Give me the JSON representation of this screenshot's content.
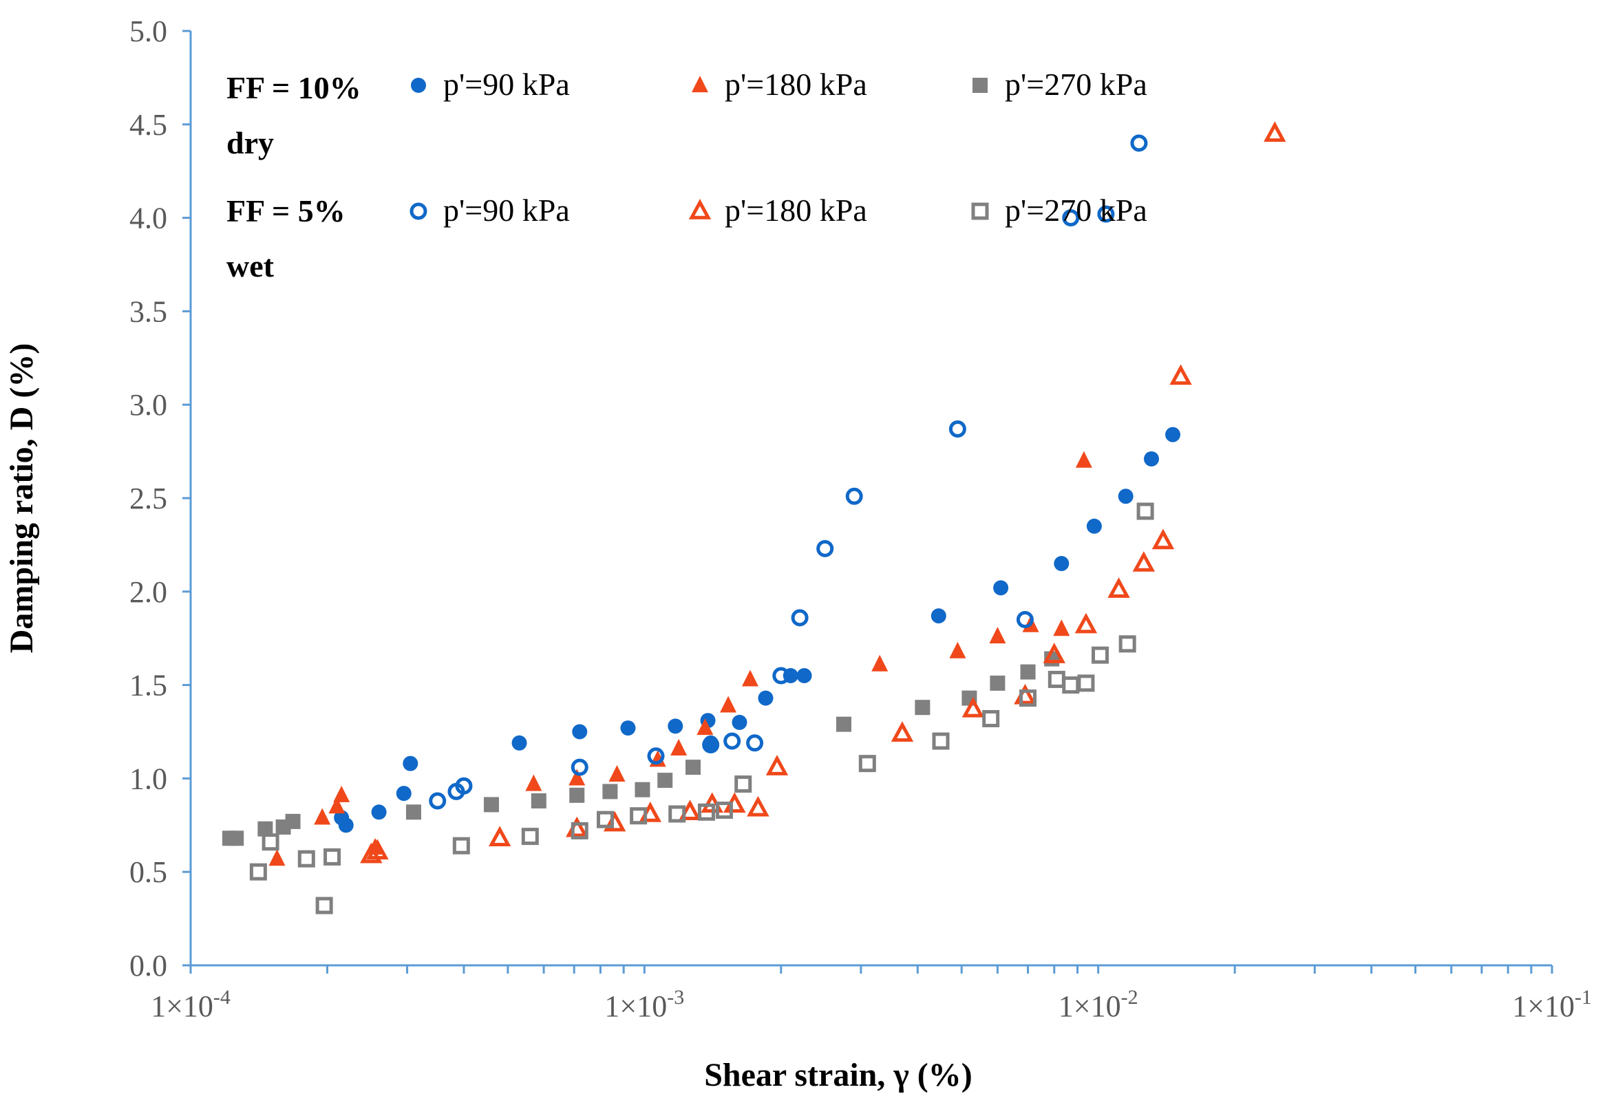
{
  "chart_data": {
    "type": "scatter",
    "x_scale": "log",
    "xlim": [
      0.0001,
      0.1
    ],
    "ylim": [
      0.0,
      5.0
    ],
    "xlabel": "Shear strain, γ (%)",
    "ylabel": "Damping ratio, D (%)",
    "x_tick_labels": [
      {
        "value": 0.0001,
        "label": "1×10",
        "exp": "-4"
      },
      {
        "value": 0.001,
        "label": "1×10",
        "exp": "-3"
      },
      {
        "value": 0.01,
        "label": "1×10",
        "exp": "-2"
      },
      {
        "value": 0.1,
        "label": "1×10",
        "exp": "-1"
      }
    ],
    "y_tick_labels": [
      {
        "value": 0.0,
        "label": "0.0"
      },
      {
        "value": 0.5,
        "label": "0.5"
      },
      {
        "value": 1.0,
        "label": "1.0"
      },
      {
        "value": 1.5,
        "label": "1.5"
      },
      {
        "value": 2.0,
        "label": "2.0"
      },
      {
        "value": 2.5,
        "label": "2.5"
      },
      {
        "value": 3.0,
        "label": "3.0"
      },
      {
        "value": 3.5,
        "label": "3.5"
      },
      {
        "value": 4.0,
        "label": "4.0"
      },
      {
        "value": 4.5,
        "label": "4.5"
      },
      {
        "value": 5.0,
        "label": "5.0"
      }
    ],
    "legend_groups": [
      {
        "line1": "FF = 10%",
        "line2": "dry"
      },
      {
        "line1": "FF = 5%",
        "line2": "wet"
      }
    ],
    "series": [
      {
        "name": "p'=90 kPa",
        "group": "FF = 10% dry",
        "marker": "circle",
        "filled": true,
        "color": "#1068c8",
        "points": [
          [
            0.000215,
            0.79
          ],
          [
            0.00022,
            0.75
          ],
          [
            0.00026,
            0.82
          ],
          [
            0.000295,
            0.92
          ],
          [
            0.000305,
            1.08
          ],
          [
            0.00053,
            1.19
          ],
          [
            0.00072,
            1.25
          ],
          [
            0.00092,
            1.27
          ],
          [
            0.00117,
            1.28
          ],
          [
            0.00138,
            1.31
          ],
          [
            0.0014,
            1.19
          ],
          [
            0.00162,
            1.3
          ],
          [
            0.00185,
            1.43
          ],
          [
            0.0021,
            1.55
          ],
          [
            0.00225,
            1.55
          ],
          [
            0.00445,
            1.87
          ],
          [
            0.0061,
            2.02
          ],
          [
            0.0083,
            2.15
          ],
          [
            0.0098,
            2.35
          ],
          [
            0.0115,
            2.51
          ],
          [
            0.0131,
            2.71
          ],
          [
            0.0146,
            2.84
          ]
        ]
      },
      {
        "name": "p'=180 kPa",
        "group": "FF = 10% dry",
        "marker": "triangle",
        "filled": true,
        "color": "#f0481a",
        "points": [
          [
            0.000155,
            0.57
          ],
          [
            0.000195,
            0.79
          ],
          [
            0.00021,
            0.85
          ],
          [
            0.000215,
            0.91
          ],
          [
            0.000255,
            0.63
          ],
          [
            0.00057,
            0.97
          ],
          [
            0.00071,
            1.0
          ],
          [
            0.00087,
            1.02
          ],
          [
            0.00107,
            1.1
          ],
          [
            0.00119,
            1.16
          ],
          [
            0.00136,
            1.27
          ],
          [
            0.00153,
            1.39
          ],
          [
            0.00171,
            1.53
          ],
          [
            0.0033,
            1.61
          ],
          [
            0.0049,
            1.68
          ],
          [
            0.006,
            1.76
          ],
          [
            0.0071,
            1.82
          ],
          [
            0.0083,
            1.8
          ],
          [
            0.0093,
            2.7
          ]
        ]
      },
      {
        "name": "p'=270 kPa",
        "group": "FF = 10% dry",
        "marker": "square",
        "filled": true,
        "color": "#808080",
        "points": [
          [
            0.000122,
            0.68
          ],
          [
            0.000126,
            0.68
          ],
          [
            0.000146,
            0.73
          ],
          [
            0.00016,
            0.74
          ],
          [
            0.000168,
            0.77
          ],
          [
            0.00031,
            0.82
          ],
          [
            0.00046,
            0.86
          ],
          [
            0.000585,
            0.88
          ],
          [
            0.00071,
            0.91
          ],
          [
            0.00084,
            0.93
          ],
          [
            0.00099,
            0.94
          ],
          [
            0.00111,
            0.99
          ],
          [
            0.00128,
            1.06
          ],
          [
            0.00275,
            1.29
          ],
          [
            0.0041,
            1.38
          ],
          [
            0.0052,
            1.43
          ],
          [
            0.006,
            1.51
          ],
          [
            0.007,
            1.57
          ],
          [
            0.0079,
            1.64
          ]
        ]
      },
      {
        "name": "p'=90 kPa",
        "group": "FF = 5% wet",
        "marker": "circle",
        "filled": false,
        "color": "#1068c8",
        "points": [
          [
            0.00035,
            0.88
          ],
          [
            0.000385,
            0.93
          ],
          [
            0.0004,
            0.96
          ],
          [
            0.00072,
            1.06
          ],
          [
            0.00106,
            1.12
          ],
          [
            0.0014,
            1.18
          ],
          [
            0.00156,
            1.2
          ],
          [
            0.00175,
            1.19
          ],
          [
            0.002,
            1.55
          ],
          [
            0.0022,
            1.86
          ],
          [
            0.0025,
            2.23
          ],
          [
            0.0029,
            2.51
          ],
          [
            0.0049,
            2.87
          ],
          [
            0.0069,
            1.85
          ],
          [
            0.0087,
            4.0
          ],
          [
            0.0104,
            4.02
          ],
          [
            0.0123,
            4.4
          ]
        ]
      },
      {
        "name": "p'=180 kPa",
        "group": "FF = 5% wet",
        "marker": "triangle",
        "filled": false,
        "color": "#f0481a",
        "points": [
          [
            0.00025,
            0.59
          ],
          [
            0.000258,
            0.61
          ],
          [
            0.00048,
            0.68
          ],
          [
            0.00071,
            0.73
          ],
          [
            0.00086,
            0.76
          ],
          [
            0.00103,
            0.81
          ],
          [
            0.00126,
            0.82
          ],
          [
            0.00141,
            0.86
          ],
          [
            0.00158,
            0.86
          ],
          [
            0.00178,
            0.84
          ],
          [
            0.00196,
            1.06
          ],
          [
            0.0037,
            1.24
          ],
          [
            0.0053,
            1.37
          ],
          [
            0.0069,
            1.44
          ],
          [
            0.008,
            1.66
          ],
          [
            0.0094,
            1.82
          ],
          [
            0.0111,
            2.01
          ],
          [
            0.0126,
            2.15
          ],
          [
            0.0139,
            2.27
          ],
          [
            0.0152,
            3.15
          ],
          [
            0.0245,
            4.45
          ]
        ]
      },
      {
        "name": "p'=270 kPa",
        "group": "FF = 5% wet",
        "marker": "square",
        "filled": false,
        "color": "#808080",
        "points": [
          [
            0.000141,
            0.5
          ],
          [
            0.00015,
            0.66
          ],
          [
            0.00018,
            0.57
          ],
          [
            0.000197,
            0.32
          ],
          [
            0.000205,
            0.58
          ],
          [
            0.000395,
            0.64
          ],
          [
            0.00056,
            0.69
          ],
          [
            0.00072,
            0.72
          ],
          [
            0.00082,
            0.78
          ],
          [
            0.00097,
            0.8
          ],
          [
            0.00118,
            0.81
          ],
          [
            0.00137,
            0.82
          ],
          [
            0.0015,
            0.83
          ],
          [
            0.00165,
            0.97
          ],
          [
            0.0031,
            1.08
          ],
          [
            0.0045,
            1.2
          ],
          [
            0.0058,
            1.32
          ],
          [
            0.007,
            1.43
          ],
          [
            0.0081,
            1.53
          ],
          [
            0.0087,
            1.5
          ],
          [
            0.0094,
            1.51
          ],
          [
            0.0101,
            1.66
          ],
          [
            0.0116,
            1.72
          ],
          [
            0.0127,
            2.43
          ]
        ]
      }
    ]
  }
}
